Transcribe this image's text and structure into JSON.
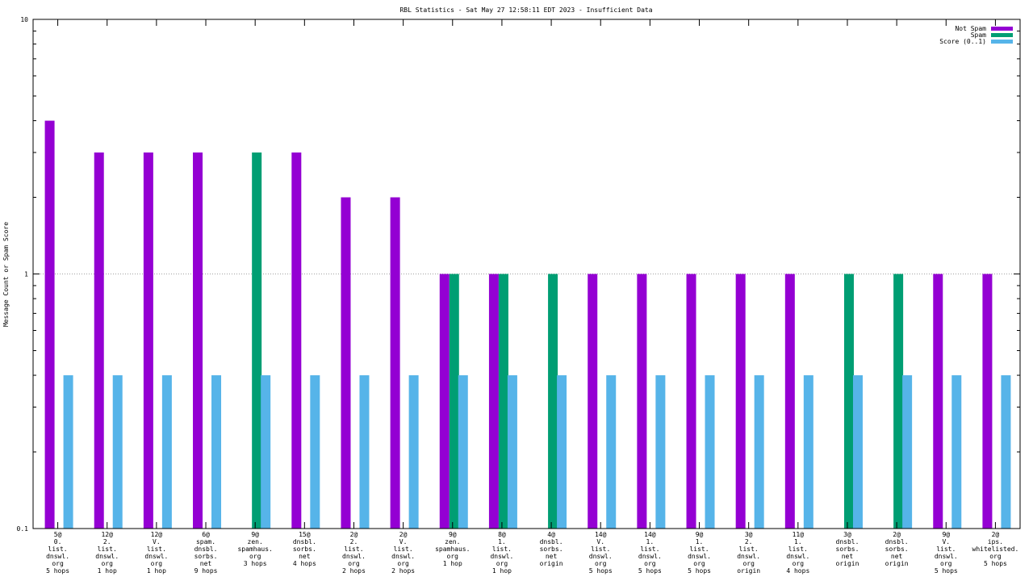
{
  "chart_data": {
    "type": "bar",
    "title": "RBL Statistics - Sat May 27 12:58:11 EDT 2023 - Insufficient Data",
    "xlabel": "",
    "ylabel": "Message Count or Spam Score",
    "yscale": "log",
    "ylim": [
      0.1,
      10
    ],
    "ytick_labels": [
      "10",
      "1",
      "0.1"
    ],
    "ytick_values": [
      10,
      1,
      0.1
    ],
    "grid": true,
    "legend_position": "top-right",
    "categories": [
      [
        "5@",
        "0.",
        "list.",
        "dnswl.",
        "org",
        "5 hops"
      ],
      [
        "12@",
        "2.",
        "list.",
        "dnswl.",
        "org",
        "1 hop"
      ],
      [
        "12@",
        "V.",
        "list.",
        "dnswl.",
        "org",
        "1 hop"
      ],
      [
        "6@",
        "spam.",
        "dnsbl.",
        "sorbs.",
        "net",
        "9 hops"
      ],
      [
        "9@",
        "zen.",
        "spamhaus.",
        "org",
        "3 hops"
      ],
      [
        "15@",
        "dnsbl.",
        "sorbs.",
        "net",
        "4 hops"
      ],
      [
        "2@",
        "2.",
        "list.",
        "dnswl.",
        "org",
        "2 hops"
      ],
      [
        "2@",
        "V.",
        "list.",
        "dnswl.",
        "org",
        "2 hops"
      ],
      [
        "9@",
        "zen.",
        "spamhaus.",
        "org",
        "1 hop"
      ],
      [
        "8@",
        "1.",
        "list.",
        "dnswl.",
        "org",
        "1 hop"
      ],
      [
        "4@",
        "dnsbl.",
        "sorbs.",
        "net",
        "origin"
      ],
      [
        "14@",
        "V.",
        "list.",
        "dnswl.",
        "org",
        "5 hops"
      ],
      [
        "14@",
        "1.",
        "list.",
        "dnswl.",
        "org",
        "5 hops"
      ],
      [
        "9@",
        "1.",
        "list.",
        "dnswl.",
        "org",
        "5 hops"
      ],
      [
        "3@",
        "2.",
        "list.",
        "dnswl.",
        "org",
        "origin"
      ],
      [
        "11@",
        "1.",
        "list.",
        "dnswl.",
        "org",
        "4 hops"
      ],
      [
        "3@",
        "dnsbl.",
        "sorbs.",
        "net",
        "origin"
      ],
      [
        "2@",
        "dnsbl.",
        "sorbs.",
        "net",
        "origin"
      ],
      [
        "9@",
        "V.",
        "list.",
        "dnswl.",
        "org",
        "5 hops"
      ],
      [
        "2@",
        "ips.",
        "whitelisted.",
        "org",
        "5 hops"
      ]
    ],
    "series": [
      {
        "name": "Not Spam",
        "color": "#9400d3",
        "values": [
          4,
          3,
          3,
          3,
          null,
          3,
          2,
          2,
          1,
          1,
          null,
          1,
          1,
          1,
          1,
          1,
          null,
          null,
          1,
          1
        ]
      },
      {
        "name": "Spam",
        "color": "#009e73",
        "values": [
          null,
          null,
          null,
          null,
          3,
          null,
          null,
          null,
          1,
          1,
          1,
          null,
          null,
          null,
          null,
          null,
          1,
          1,
          null,
          null
        ]
      },
      {
        "name": "Score (0..1)",
        "color": "#56b4e9",
        "values": [
          0.4,
          0.4,
          0.4,
          0.4,
          0.4,
          0.4,
          0.4,
          0.4,
          0.4,
          0.4,
          0.4,
          0.4,
          0.4,
          0.4,
          0.4,
          0.4,
          0.4,
          0.4,
          0.4,
          0.4
        ]
      }
    ]
  }
}
